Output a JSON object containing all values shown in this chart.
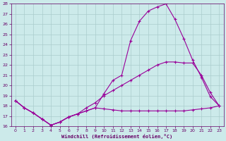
{
  "background_color": "#cceaea",
  "line_color": "#990099",
  "grid_color": "#aacccc",
  "xlabel": "Windchill (Refroidissement éolien,°C)",
  "xlabel_color": "#660066",
  "tick_color": "#660066",
  "xlim": [
    -0.5,
    23.5
  ],
  "ylim": [
    16,
    28
  ],
  "yticks": [
    16,
    17,
    18,
    19,
    20,
    21,
    22,
    23,
    24,
    25,
    26,
    27,
    28
  ],
  "xticks": [
    0,
    1,
    2,
    3,
    4,
    5,
    6,
    7,
    8,
    9,
    10,
    11,
    12,
    13,
    14,
    15,
    16,
    17,
    18,
    19,
    20,
    21,
    22,
    23
  ],
  "line1_x": [
    0,
    1,
    2,
    3,
    4,
    5,
    6,
    7,
    8,
    9,
    10,
    11,
    12,
    13,
    14,
    15,
    16,
    17,
    18,
    19,
    20,
    21,
    22,
    23
  ],
  "line1_y": [
    18.5,
    17.8,
    17.3,
    16.7,
    16.1,
    16.4,
    16.9,
    17.2,
    17.5,
    17.8,
    19.2,
    20.5,
    21.0,
    24.4,
    26.3,
    27.3,
    27.7,
    28.0,
    26.5,
    24.6,
    22.5,
    20.8,
    18.9,
    18.0
  ],
  "line2_x": [
    0,
    1,
    2,
    3,
    4,
    5,
    6,
    7,
    8,
    9,
    10,
    11,
    12,
    13,
    14,
    15,
    16,
    17,
    18,
    19,
    20,
    21,
    22,
    23
  ],
  "line2_y": [
    18.5,
    17.8,
    17.3,
    16.7,
    16.1,
    16.4,
    16.9,
    17.2,
    17.8,
    18.3,
    19.0,
    19.5,
    20.0,
    20.5,
    21.0,
    21.5,
    22.0,
    22.3,
    22.3,
    22.2,
    22.2,
    21.0,
    19.3,
    18.0
  ],
  "line3_x": [
    0,
    1,
    2,
    3,
    4,
    5,
    6,
    7,
    8,
    9,
    10,
    11,
    12,
    13,
    14,
    15,
    16,
    17,
    18,
    19,
    20,
    21,
    22,
    23
  ],
  "line3_y": [
    18.5,
    17.8,
    17.3,
    16.7,
    16.1,
    16.4,
    16.9,
    17.2,
    17.5,
    17.8,
    17.7,
    17.6,
    17.5,
    17.5,
    17.5,
    17.5,
    17.5,
    17.5,
    17.5,
    17.5,
    17.6,
    17.7,
    17.8,
    18.0
  ]
}
